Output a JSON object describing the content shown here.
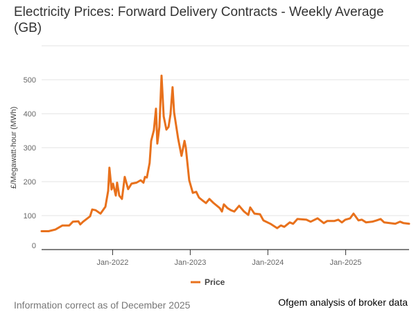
{
  "footer": {
    "note": "Information correct as of December 2025",
    "source": "Ofgem analysis of broker data"
  },
  "chart_data": {
    "type": "line",
    "title": "Electricity Prices: Forward Delivery Contracts - Weekly Average (GB)",
    "xlabel": "",
    "ylabel": "£/Megawatt-hour (MWh)",
    "ylim": [
      0,
      600
    ],
    "xlim": [
      "2021-02-01",
      "2025-10-26"
    ],
    "yticks": [
      0,
      100,
      200,
      300,
      400,
      500
    ],
    "xticks": [
      {
        "date": "2022-01-01",
        "label": "Jan-2022"
      },
      {
        "date": "2023-01-01",
        "label": "Jan-2023"
      },
      {
        "date": "2024-01-01",
        "label": "Jan-2024"
      },
      {
        "date": "2025-01-01",
        "label": "Jan-2025"
      }
    ],
    "grid": true,
    "legend_position": "bottom",
    "series": [
      {
        "name": "Price",
        "color": "#e8711c",
        "points": [
          [
            "2021-02-01",
            54
          ],
          [
            "2021-03-06",
            54
          ],
          [
            "2021-04-07",
            59
          ],
          [
            "2021-05-10",
            71
          ],
          [
            "2021-06-11",
            71
          ],
          [
            "2021-06-28",
            82
          ],
          [
            "2021-07-24",
            83
          ],
          [
            "2021-08-02",
            74
          ],
          [
            "2021-08-15",
            82
          ],
          [
            "2021-09-17",
            98
          ],
          [
            "2021-09-27",
            118
          ],
          [
            "2021-10-13",
            116
          ],
          [
            "2021-11-05",
            106
          ],
          [
            "2021-11-28",
            126
          ],
          [
            "2021-12-11",
            173
          ],
          [
            "2021-12-17",
            241
          ],
          [
            "2021-12-27",
            177
          ],
          [
            "2022-01-03",
            194
          ],
          [
            "2022-01-16",
            159
          ],
          [
            "2022-01-22",
            197
          ],
          [
            "2022-02-01",
            159
          ],
          [
            "2022-02-14",
            149
          ],
          [
            "2022-02-27",
            214
          ],
          [
            "2022-03-15",
            178
          ],
          [
            "2022-03-31",
            194
          ],
          [
            "2022-04-23",
            197
          ],
          [
            "2022-05-13",
            204
          ],
          [
            "2022-05-26",
            197
          ],
          [
            "2022-06-02",
            214
          ],
          [
            "2022-06-11",
            212
          ],
          [
            "2022-06-24",
            255
          ],
          [
            "2022-07-01",
            320
          ],
          [
            "2022-07-14",
            351
          ],
          [
            "2022-07-24",
            415
          ],
          [
            "2022-07-30",
            312
          ],
          [
            "2022-08-09",
            361
          ],
          [
            "2022-08-19",
            512
          ],
          [
            "2022-08-29",
            392
          ],
          [
            "2022-09-11",
            353
          ],
          [
            "2022-09-21",
            361
          ],
          [
            "2022-09-30",
            398
          ],
          [
            "2022-10-10",
            478
          ],
          [
            "2022-10-17",
            404
          ],
          [
            "2022-11-05",
            327
          ],
          [
            "2022-11-21",
            276
          ],
          [
            "2022-12-05",
            320
          ],
          [
            "2022-12-11",
            300
          ],
          [
            "2022-12-27",
            204
          ],
          [
            "2023-01-13",
            167
          ],
          [
            "2023-01-29",
            170
          ],
          [
            "2023-02-11",
            153
          ],
          [
            "2023-03-03",
            143
          ],
          [
            "2023-03-16",
            137
          ],
          [
            "2023-04-01",
            149
          ],
          [
            "2023-04-21",
            137
          ],
          [
            "2023-05-20",
            122
          ],
          [
            "2023-05-30",
            112
          ],
          [
            "2023-06-08",
            133
          ],
          [
            "2023-06-25",
            122
          ],
          [
            "2023-07-11",
            116
          ],
          [
            "2023-07-27",
            112
          ],
          [
            "2023-08-19",
            129
          ],
          [
            "2023-09-11",
            112
          ],
          [
            "2023-10-01",
            102
          ],
          [
            "2023-10-10",
            124
          ],
          [
            "2023-10-30",
            106
          ],
          [
            "2023-11-25",
            104
          ],
          [
            "2023-12-11",
            86
          ],
          [
            "2024-01-13",
            76
          ],
          [
            "2024-02-14",
            63
          ],
          [
            "2024-03-02",
            71
          ],
          [
            "2024-03-18",
            67
          ],
          [
            "2024-04-13",
            80
          ],
          [
            "2024-04-29",
            76
          ],
          [
            "2024-05-19",
            90
          ],
          [
            "2024-06-30",
            88
          ],
          [
            "2024-07-20",
            82
          ],
          [
            "2024-08-22",
            92
          ],
          [
            "2024-09-20",
            78
          ],
          [
            "2024-10-06",
            84
          ],
          [
            "2024-11-08",
            84
          ],
          [
            "2024-11-27",
            88
          ],
          [
            "2024-12-14",
            80
          ],
          [
            "2024-12-30",
            88
          ],
          [
            "2025-01-22",
            92
          ],
          [
            "2025-02-07",
            106
          ],
          [
            "2025-03-02",
            86
          ],
          [
            "2025-03-18",
            88
          ],
          [
            "2025-04-07",
            80
          ],
          [
            "2025-05-06",
            82
          ],
          [
            "2025-05-26",
            86
          ],
          [
            "2025-06-14",
            90
          ],
          [
            "2025-07-01",
            80
          ],
          [
            "2025-08-22",
            76
          ],
          [
            "2025-09-14",
            82
          ],
          [
            "2025-09-30",
            78
          ],
          [
            "2025-10-26",
            76
          ]
        ]
      }
    ]
  }
}
